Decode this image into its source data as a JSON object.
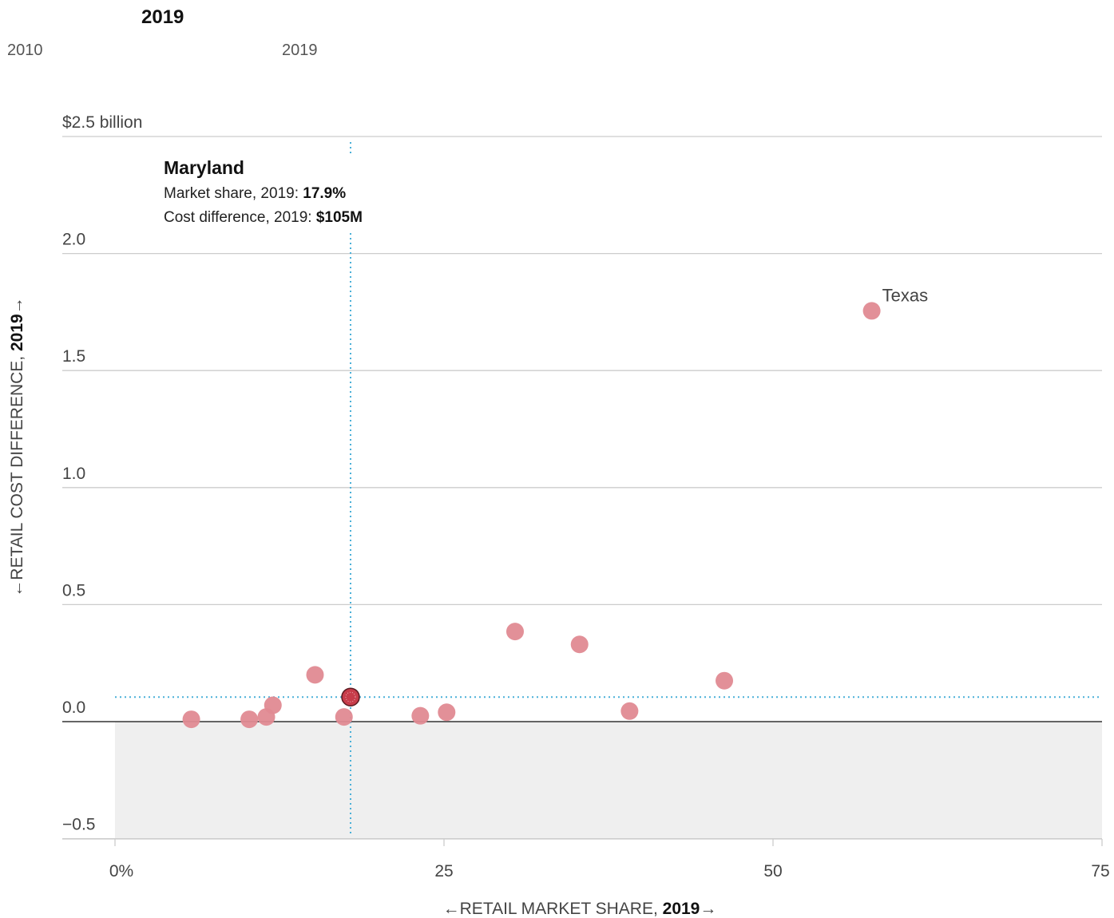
{
  "slider": {
    "current_year": "2019",
    "start_label": "2010",
    "end_label": "2019"
  },
  "colors": {
    "point": "#e08a92",
    "highlight": "#c73c4a",
    "guide": "#4ab0d8",
    "negative_band": "#efefef",
    "grid": "#cccccc",
    "zero_line": "#333333"
  },
  "chart_data": {
    "type": "scatter",
    "xlabel": {
      "prefix": "←RETAIL MARKET SHARE, ",
      "year": "2019",
      "suffix": "→"
    },
    "ylabel": {
      "prefix": "←RETAIL COST DIFFERENCE, ",
      "year": "2019",
      "suffix": "→"
    },
    "xlim": [
      -4,
      75
    ],
    "ylim": [
      -0.5,
      2.5
    ],
    "x_ticks": [
      {
        "value": 0,
        "label": "0%"
      },
      {
        "value": 25,
        "label": "25"
      },
      {
        "value": 50,
        "label": "50"
      },
      {
        "value": 75,
        "label": "75"
      }
    ],
    "y_ticks": [
      {
        "value": 2.5,
        "label": "$2.5 billion"
      },
      {
        "value": 2.0,
        "label": "2.0"
      },
      {
        "value": 1.5,
        "label": "1.5"
      },
      {
        "value": 1.0,
        "label": "1.0"
      },
      {
        "value": 0.5,
        "label": "0.5"
      },
      {
        "value": 0.0,
        "label": "0.0"
      },
      {
        "value": -0.5,
        "label": "−0.5"
      }
    ],
    "grid": true,
    "points": [
      {
        "x": 5.8,
        "y": 0.01
      },
      {
        "x": 10.2,
        "y": 0.01
      },
      {
        "x": 11.5,
        "y": 0.02
      },
      {
        "x": 12.0,
        "y": 0.07
      },
      {
        "x": 15.2,
        "y": 0.2
      },
      {
        "x": 17.4,
        "y": 0.02
      },
      {
        "x": 23.2,
        "y": 0.025
      },
      {
        "x": 25.2,
        "y": 0.04
      },
      {
        "x": 30.4,
        "y": 0.385
      },
      {
        "x": 35.3,
        "y": 0.33
      },
      {
        "x": 39.1,
        "y": 0.045
      },
      {
        "x": 46.3,
        "y": 0.175
      },
      {
        "x": 57.5,
        "y": 1.755,
        "label": "Texas"
      }
    ],
    "highlight": {
      "x": 17.9,
      "y": 0.105,
      "name": "Maryland",
      "line1_label": "Market share, 2019: ",
      "line1_value": "17.9%",
      "line2_label": "Cost difference, 2019: ",
      "line2_value": "$105M"
    }
  }
}
